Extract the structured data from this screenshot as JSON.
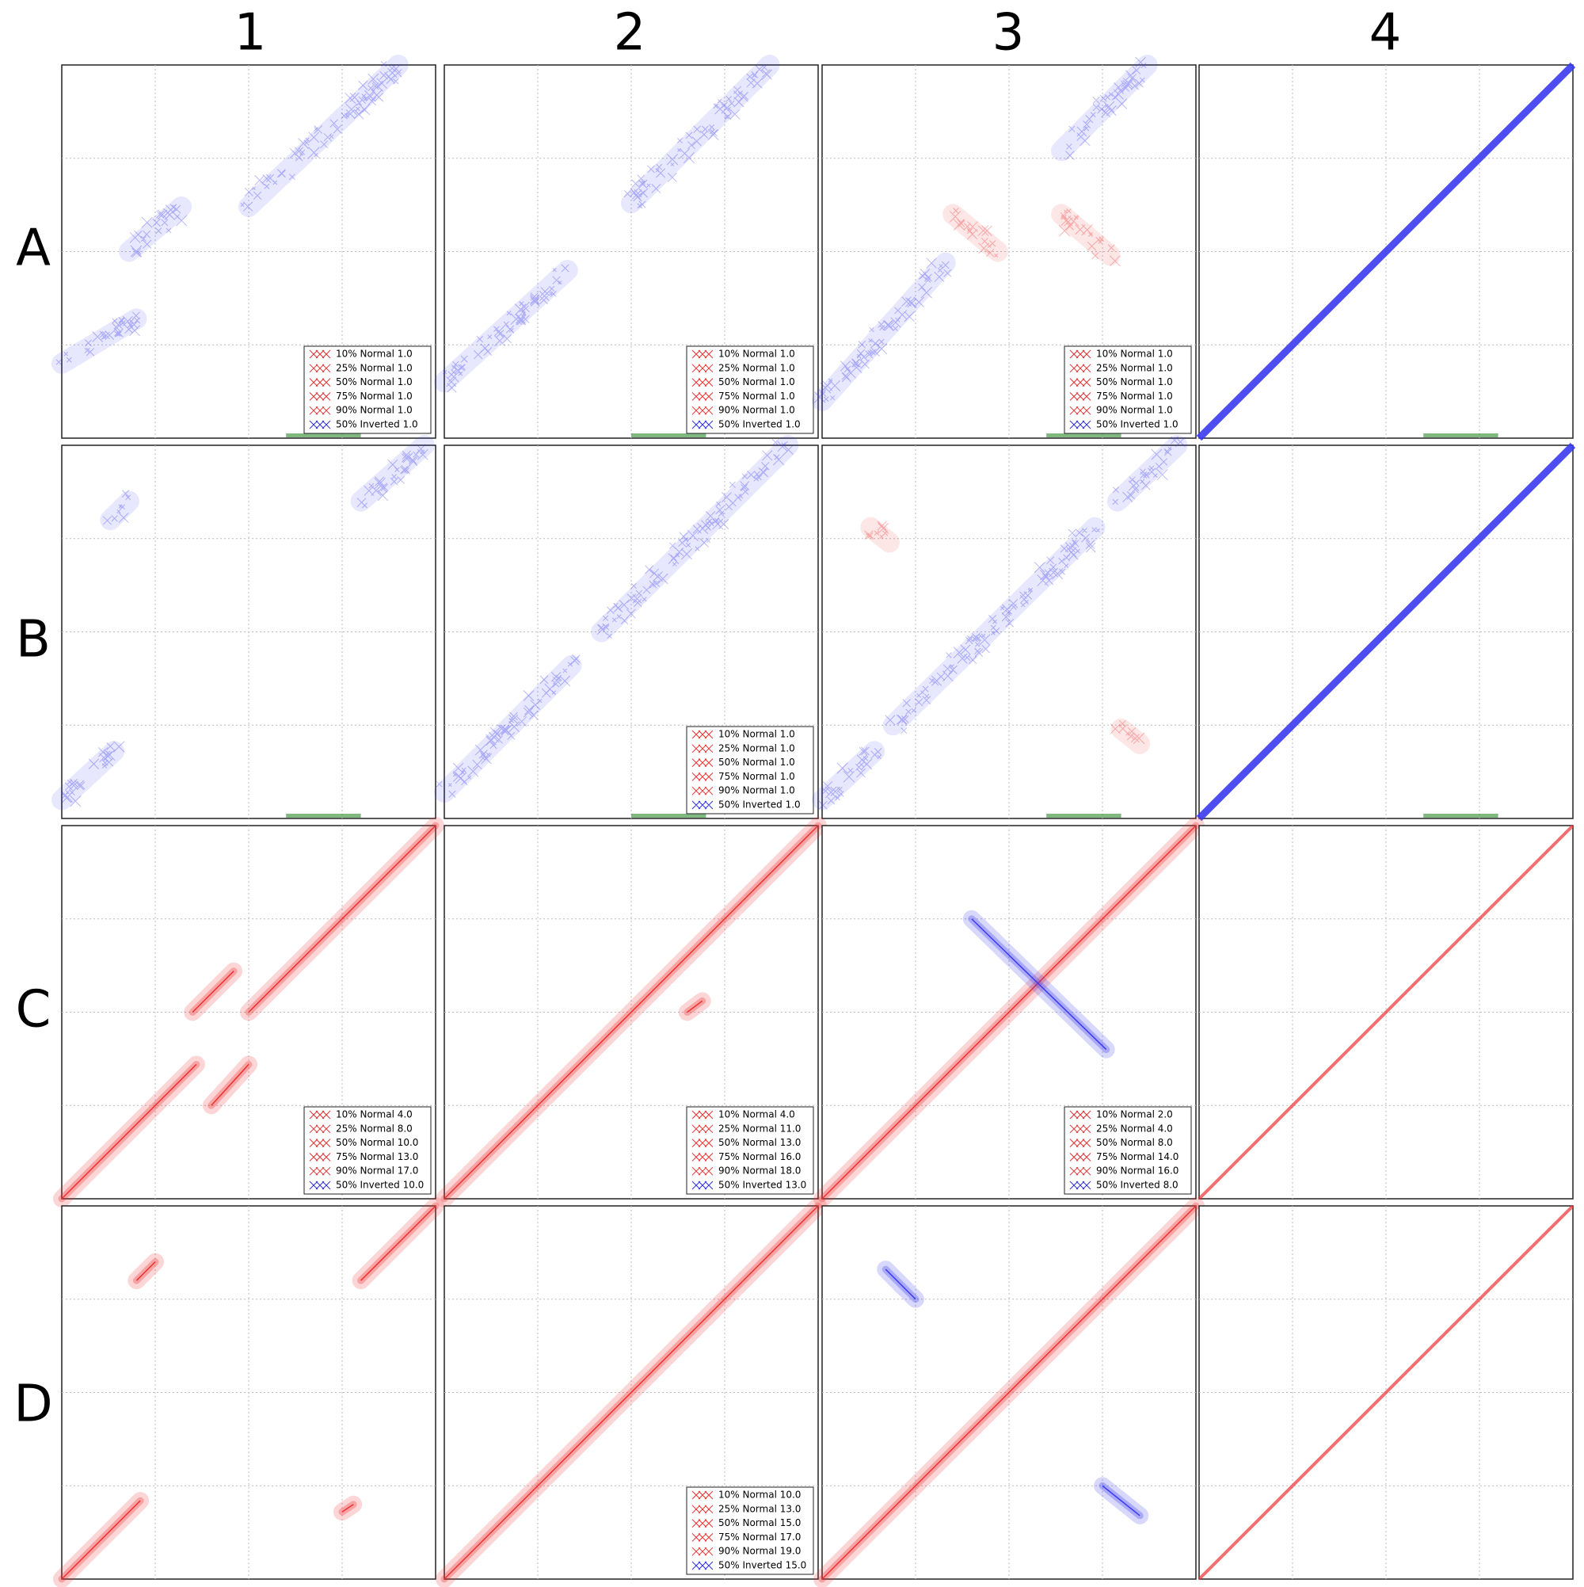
{
  "columns": [
    "1",
    "2",
    "3",
    "4"
  ],
  "rows": [
    "A",
    "B",
    "C",
    "D"
  ],
  "legends": [
    {
      "items": [
        {
          "label": "10% Normal 1.0",
          "color": "#e83030"
        },
        {
          "label": "25% Normal 1.0",
          "color": "#e83030"
        },
        {
          "label": "50% Normal 1.0",
          "color": "#e83030"
        },
        {
          "label": "75% Normal 1.0",
          "color": "#e83030"
        },
        {
          "label": "90% Normal 1.0",
          "color": "#e83030"
        },
        {
          "label": "50% Inverted 1.0",
          "color": "#3030e0"
        }
      ]
    },
    {
      "items": [
        {
          "label": "10% Normal 1.0",
          "color": "#e83030"
        },
        {
          "label": "25% Normal 1.0",
          "color": "#e83030"
        },
        {
          "label": "50% Normal 1.0",
          "color": "#e83030"
        },
        {
          "label": "75% Normal 1.0",
          "color": "#e83030"
        },
        {
          "label": "90% Normal 1.0",
          "color": "#e83030"
        },
        {
          "label": "50% Inverted 1.0",
          "color": "#3030e0"
        }
      ]
    },
    {
      "items": [
        {
          "label": "10% Normal 1.0",
          "color": "#e83030"
        },
        {
          "label": "25% Normal 1.0",
          "color": "#e83030"
        },
        {
          "label": "50% Normal 1.0",
          "color": "#e83030"
        },
        {
          "label": "75% Normal 1.0",
          "color": "#e83030"
        },
        {
          "label": "90% Normal 1.0",
          "color": "#e83030"
        },
        {
          "label": "50% Inverted 1.0",
          "color": "#3030e0"
        }
      ]
    },
    {
      "items": [
        {
          "label": "10% Normal 1.0",
          "color": "#e83030"
        },
        {
          "label": "25% Normal 1.0",
          "color": "#e83030"
        },
        {
          "label": "50% Normal 1.0",
          "color": "#e83030"
        },
        {
          "label": "75% Normal 1.0",
          "color": "#e83030"
        },
        {
          "label": "90% Normal 1.0",
          "color": "#e83030"
        },
        {
          "label": "50% Inverted 1.0",
          "color": "#3030e0"
        }
      ]
    },
    {
      "items": [
        {
          "label": "10% Normal 4.0",
          "color": "#e83030"
        },
        {
          "label": "25% Normal 8.0",
          "color": "#e83030"
        },
        {
          "label": "50% Normal 10.0",
          "color": "#e83030"
        },
        {
          "label": "75% Normal 13.0",
          "color": "#e83030"
        },
        {
          "label": "90% Normal 17.0",
          "color": "#e83030"
        },
        {
          "label": "50% Inverted 10.0",
          "color": "#3030e0"
        }
      ]
    },
    {
      "items": [
        {
          "label": "10% Normal 4.0",
          "color": "#e83030"
        },
        {
          "label": "25% Normal 11.0",
          "color": "#e83030"
        },
        {
          "label": "50% Normal 13.0",
          "color": "#e83030"
        },
        {
          "label": "75% Normal 16.0",
          "color": "#e83030"
        },
        {
          "label": "90% Normal 18.0",
          "color": "#e83030"
        },
        {
          "label": "50% Inverted 13.0",
          "color": "#3030e0"
        }
      ]
    },
    {
      "items": [
        {
          "label": "10% Normal 2.0",
          "color": "#e83030"
        },
        {
          "label": "25% Normal 4.0",
          "color": "#e83030"
        },
        {
          "label": "50% Normal 8.0",
          "color": "#e83030"
        },
        {
          "label": "75% Normal 14.0",
          "color": "#e83030"
        },
        {
          "label": "90% Normal 16.0",
          "color": "#e83030"
        },
        {
          "label": "50% Inverted 8.0",
          "color": "#3030e0"
        }
      ]
    },
    {
      "items": [
        {
          "label": "10% Normal 10.0",
          "color": "#e83030"
        },
        {
          "label": "25% Normal 13.0",
          "color": "#e83030"
        },
        {
          "label": "50% Normal 15.0",
          "color": "#e83030"
        },
        {
          "label": "75% Normal 17.0",
          "color": "#e83030"
        },
        {
          "label": "90% Normal 19.0",
          "color": "#e83030"
        },
        {
          "label": "50% Inverted 15.0",
          "color": "#3030e0"
        }
      ]
    }
  ]
}
